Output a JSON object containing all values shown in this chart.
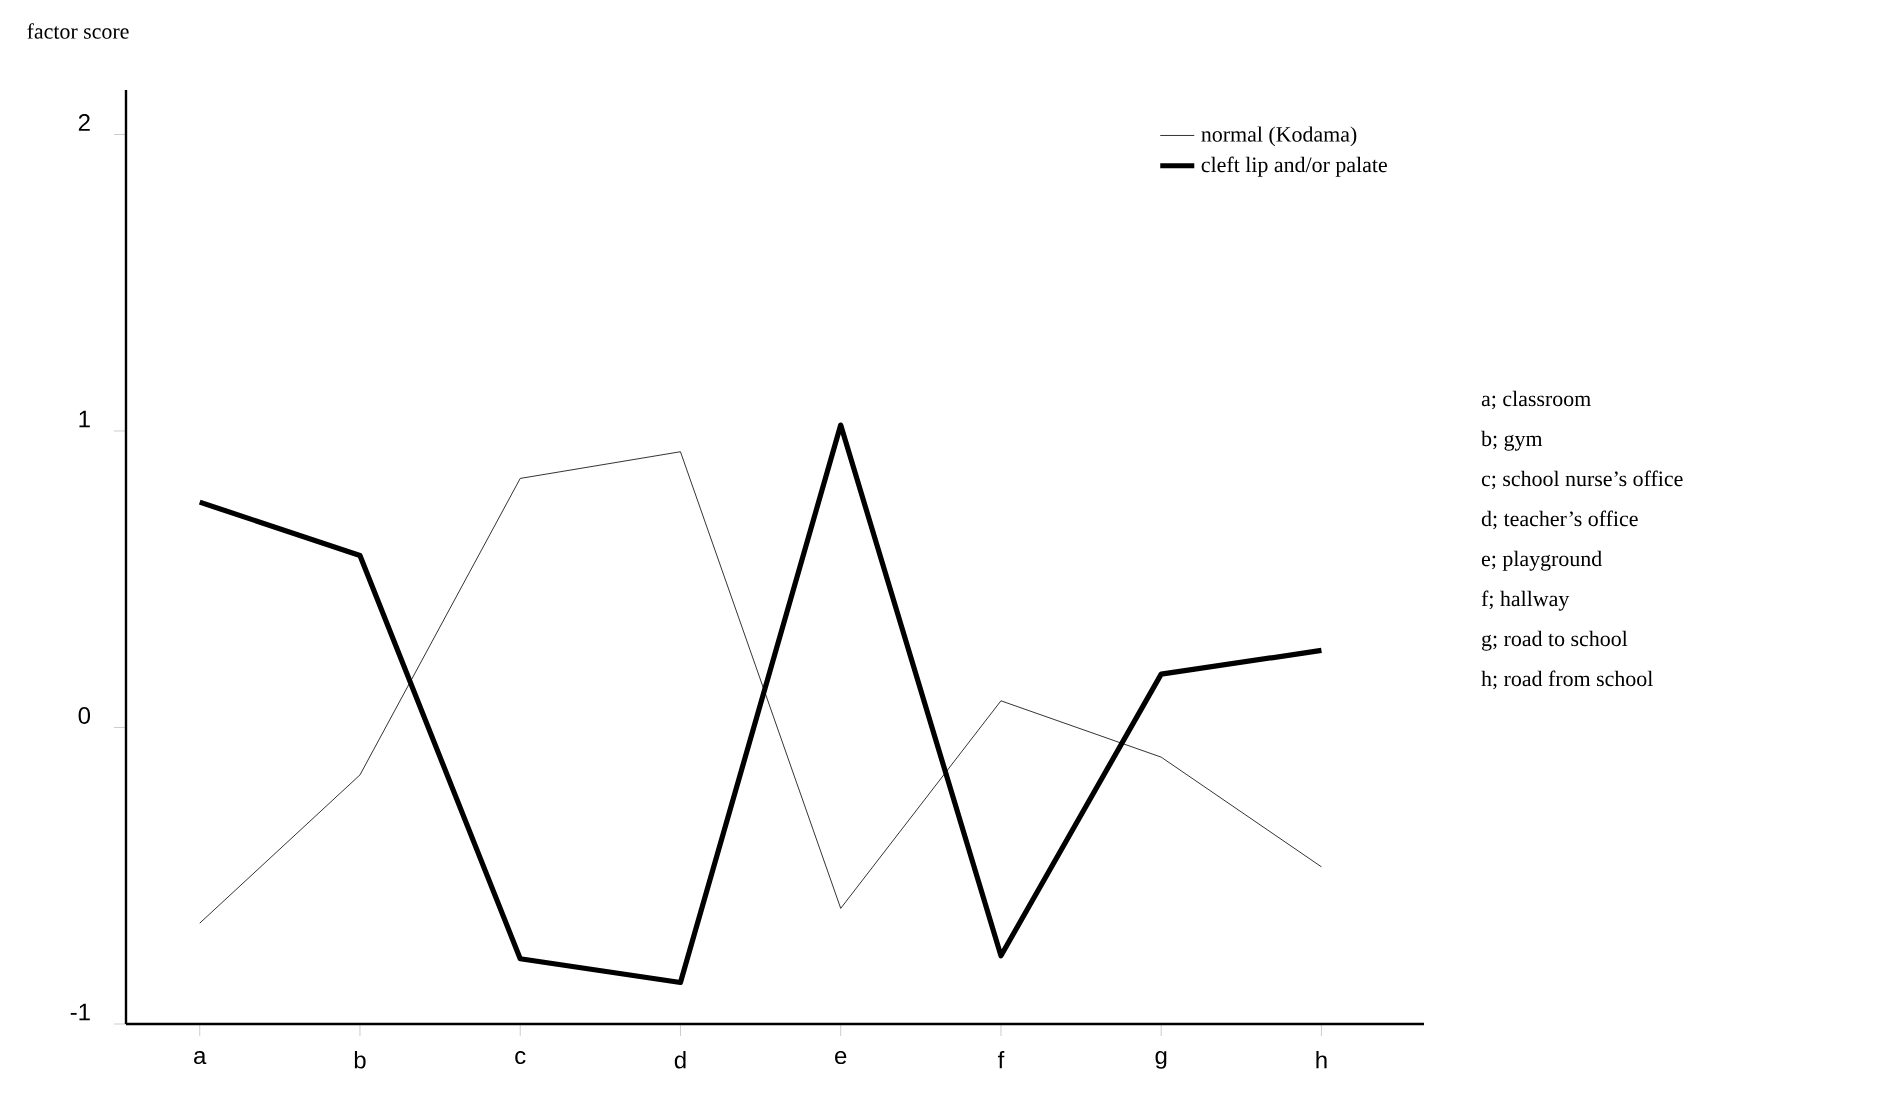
{
  "chart_data": {
    "type": "line",
    "ylabel": "factor score",
    "categories": [
      "a",
      "b",
      "c",
      "d",
      "e",
      "f",
      "g",
      "h"
    ],
    "series": [
      {
        "name": "normal (Kodama)",
        "color": "#000000",
        "values": [
          -0.66,
          -0.16,
          0.84,
          0.93,
          -0.61,
          0.09,
          -0.1,
          -0.47
        ]
      },
      {
        "name": "cleft lip and/or palate",
        "color": "#000000",
        "values": [
          0.76,
          0.58,
          -0.78,
          -0.86,
          1.02,
          -0.77,
          0.18,
          0.26
        ]
      }
    ],
    "ylim": [
      -1,
      2.15
    ],
    "yticks": [
      -1,
      0,
      1,
      2
    ],
    "grid": false,
    "legend": "top right",
    "marker": "none",
    "line_style": "solid",
    "annotations": [
      "a;  classroom",
      "b;  gym",
      "c;  school nurse’s office",
      "d;  teacher’s office",
      "e;  playground",
      "f;  hallway",
      "g;  road to school",
      "h;  road from school"
    ]
  }
}
